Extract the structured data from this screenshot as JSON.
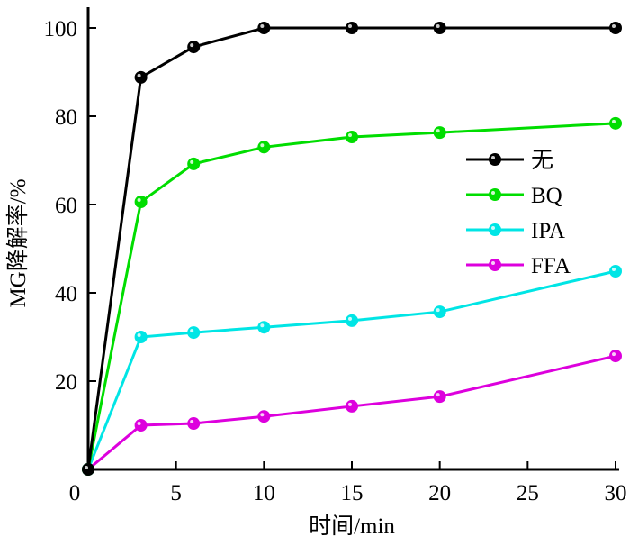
{
  "chart_data": {
    "type": "line",
    "title": "",
    "xlabel": "时间/min",
    "ylabel": "MG降解率/%",
    "xlim": [
      0,
      30
    ],
    "ylim": [
      0,
      100
    ],
    "xticks": [
      0,
      5,
      10,
      15,
      20,
      25,
      30
    ],
    "yticks": [
      20,
      40,
      60,
      80,
      100
    ],
    "origin_label": "0",
    "grid": false,
    "legend_position": "right-middle",
    "x": [
      0,
      3,
      6,
      10,
      15,
      20,
      30
    ],
    "series": [
      {
        "name": "无",
        "color": "#000000",
        "values": [
          0,
          88.8,
          95.7,
          100,
          100,
          100,
          100
        ]
      },
      {
        "name": "BQ",
        "color": "#00dd00",
        "values": [
          0,
          60.6,
          69.2,
          73.0,
          75.3,
          76.3,
          78.4
        ]
      },
      {
        "name": "IPA",
        "color": "#00e5e5",
        "values": [
          0,
          30.0,
          31.0,
          32.2,
          33.7,
          35.7,
          44.9
        ]
      },
      {
        "name": "FFA",
        "color": "#dd00dd",
        "values": [
          0,
          10.0,
          10.4,
          12.0,
          14.3,
          16.5,
          25.7
        ]
      }
    ]
  }
}
